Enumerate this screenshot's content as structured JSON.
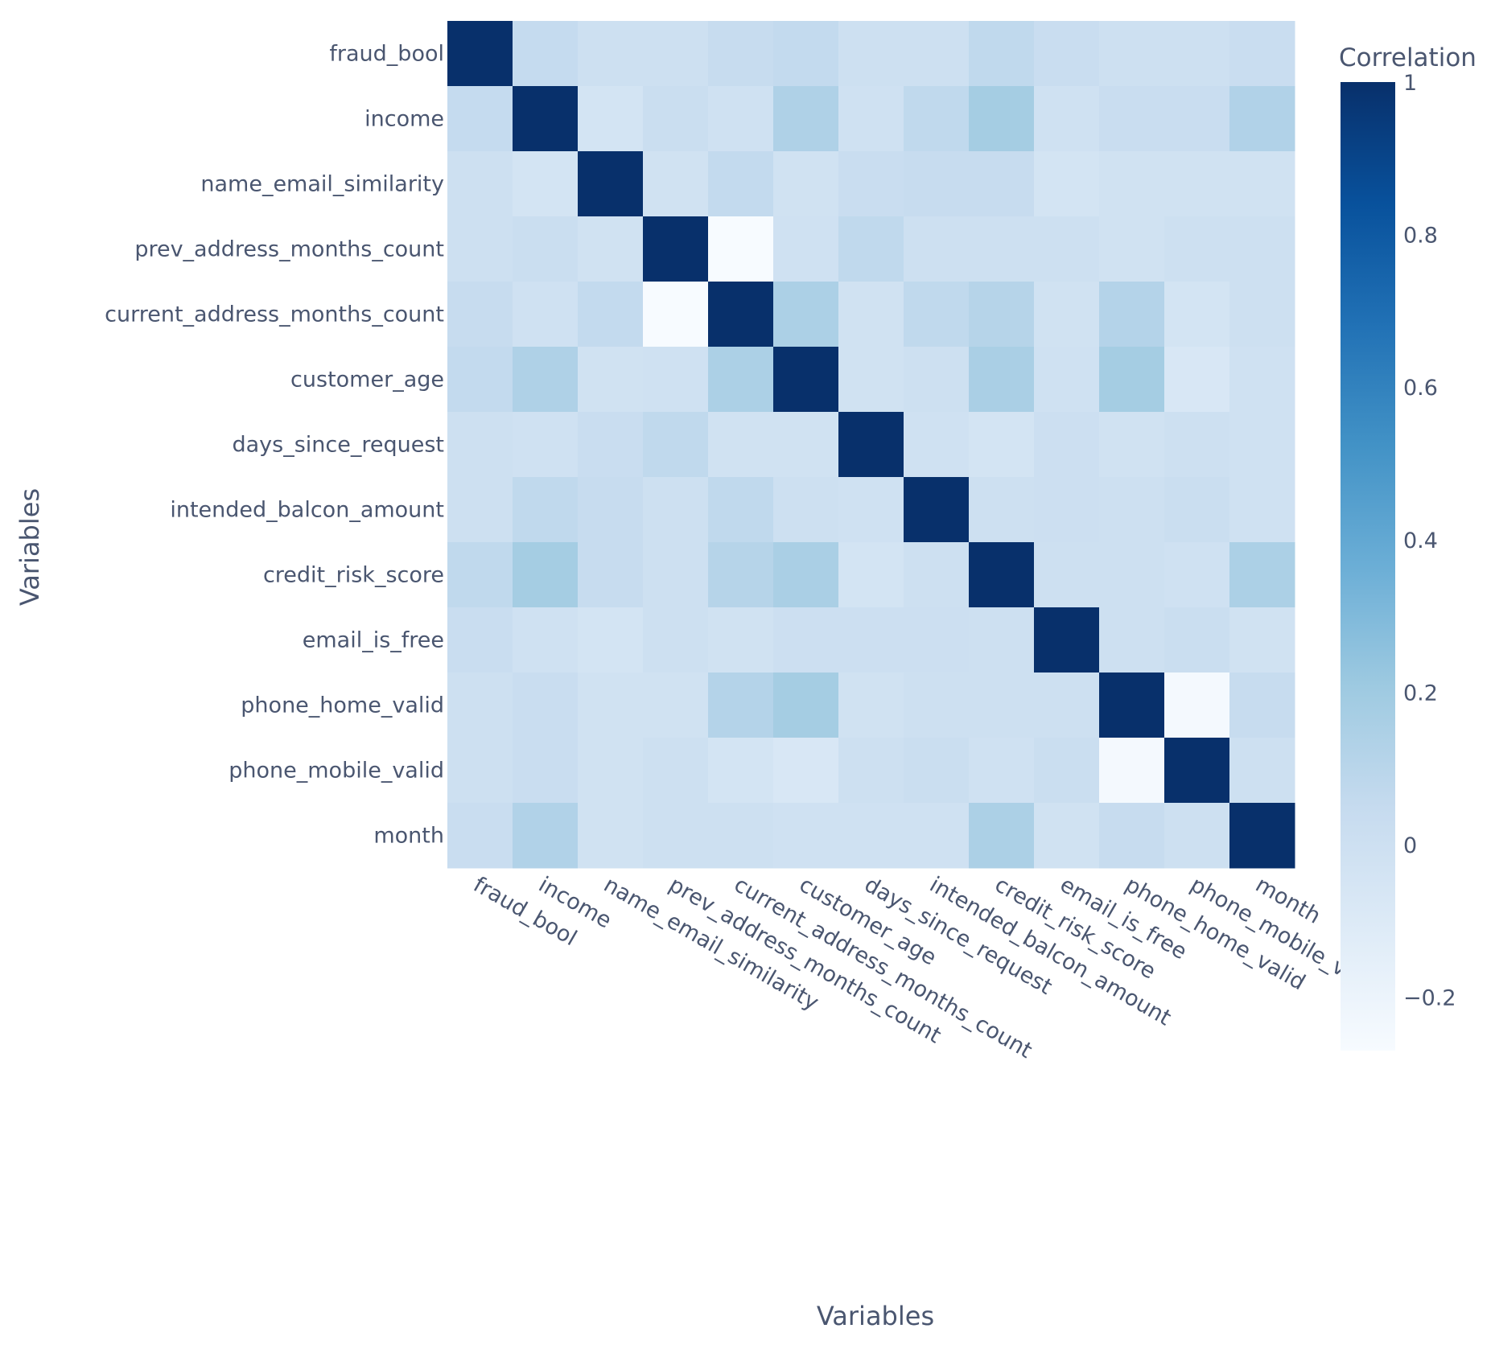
{
  "chart_data": {
    "type": "heatmap",
    "title": "",
    "xlabel": "Variables",
    "ylabel": "Variables",
    "categories": [
      "fraud_bool",
      "income",
      "name_email_similarity",
      "prev_address_months_count",
      "current_address_months_count",
      "customer_age",
      "days_since_request",
      "intended_balcon_amount",
      "credit_risk_score",
      "email_is_free",
      "phone_home_valid",
      "phone_mobile_valid",
      "month"
    ],
    "values": [
      [
        1.0,
        0.05,
        0.0,
        0.0,
        0.04,
        0.06,
        0.0,
        0.0,
        0.07,
        0.03,
        0.0,
        0.0,
        0.03
      ],
      [
        0.05,
        1.0,
        -0.04,
        0.02,
        -0.01,
        0.14,
        -0.01,
        0.07,
        0.18,
        -0.01,
        0.03,
        0.03,
        0.13
      ],
      [
        0.0,
        -0.04,
        1.0,
        -0.02,
        0.06,
        -0.02,
        0.03,
        0.04,
        0.04,
        -0.04,
        -0.02,
        -0.02,
        -0.02
      ],
      [
        0.0,
        0.02,
        -0.02,
        1.0,
        -0.27,
        -0.01,
        0.07,
        0.0,
        0.0,
        0.0,
        -0.02,
        0.0,
        0.0
      ],
      [
        0.04,
        -0.01,
        0.06,
        -0.27,
        1.0,
        0.15,
        -0.02,
        0.07,
        0.11,
        -0.02,
        0.12,
        -0.04,
        0.0
      ],
      [
        0.06,
        0.14,
        -0.02,
        -0.01,
        0.15,
        1.0,
        -0.02,
        0.0,
        0.16,
        -0.01,
        0.18,
        -0.07,
        -0.01
      ],
      [
        0.0,
        -0.01,
        0.03,
        0.07,
        -0.02,
        -0.02,
        1.0,
        -0.01,
        -0.04,
        0.01,
        -0.02,
        0.0,
        -0.01
      ],
      [
        0.0,
        0.07,
        0.04,
        0.0,
        0.07,
        0.0,
        -0.01,
        1.0,
        0.0,
        0.01,
        0.0,
        0.02,
        -0.01
      ],
      [
        0.07,
        0.18,
        0.04,
        0.0,
        0.11,
        0.16,
        -0.04,
        0.0,
        1.0,
        0.0,
        0.0,
        -0.01,
        0.15
      ],
      [
        0.03,
        -0.01,
        -0.04,
        0.0,
        -0.02,
        0.01,
        0.01,
        0.01,
        0.0,
        1.0,
        0.0,
        0.02,
        -0.02
      ],
      [
        0.0,
        0.03,
        -0.02,
        -0.02,
        0.12,
        0.18,
        -0.02,
        0.0,
        0.0,
        0.0,
        1.0,
        -0.25,
        0.04
      ],
      [
        0.0,
        0.03,
        -0.02,
        0.0,
        -0.04,
        -0.07,
        0.0,
        0.02,
        -0.01,
        0.02,
        -0.25,
        1.0,
        0.0
      ],
      [
        0.03,
        0.13,
        -0.02,
        0.0,
        0.0,
        -0.01,
        -0.01,
        -0.01,
        0.15,
        -0.02,
        0.04,
        0.0,
        1.0
      ]
    ],
    "colorbar": {
      "title": "Correlation",
      "min": -0.27,
      "max": 1,
      "ticks": [
        1,
        0.8,
        0.6,
        0.4,
        0.2,
        0,
        -0.2
      ],
      "tick_labels": [
        "1",
        "0.8",
        "0.6",
        "0.4",
        "0.2",
        "0",
        "−0.2"
      ]
    },
    "colorscale": [
      "#f7fbff",
      "#deebf7",
      "#c6dbef",
      "#9ecae1",
      "#6baed6",
      "#4292c6",
      "#2171b5",
      "#08519c",
      "#08306b"
    ],
    "grid": false
  }
}
